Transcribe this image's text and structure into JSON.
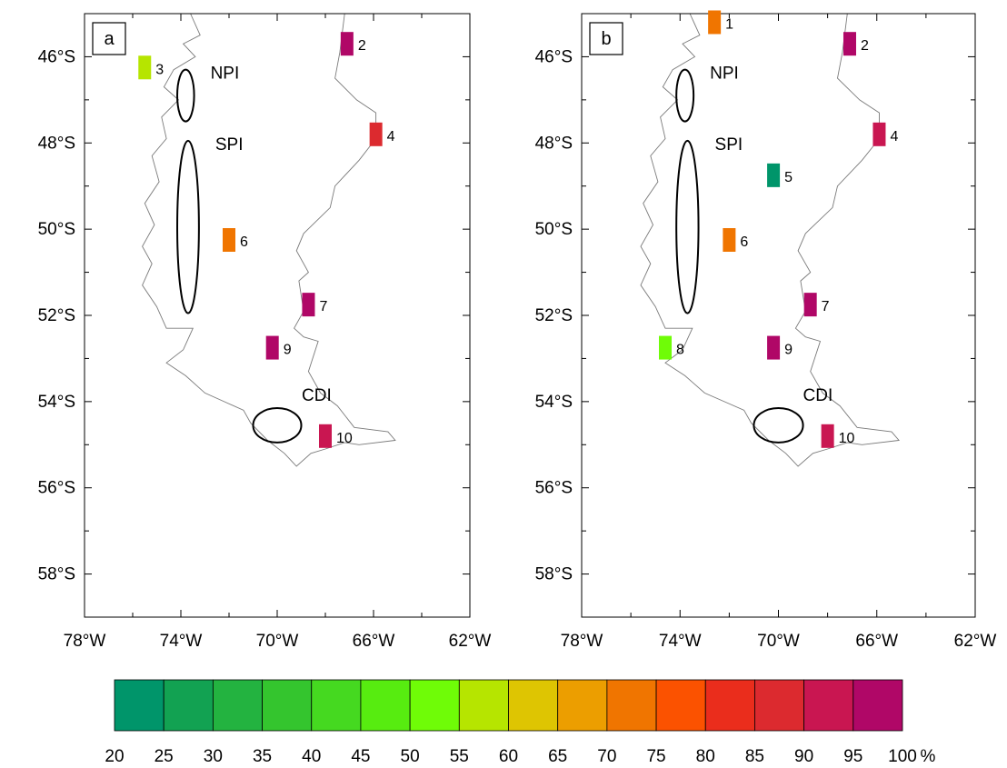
{
  "panels": [
    {
      "label": "a",
      "features": [
        {
          "name": "NPI",
          "lon": -73.8,
          "lat": -46.9,
          "rx_deg": 0.35,
          "ry_deg": 0.6
        },
        {
          "name": "SPI",
          "lon": -73.7,
          "lat": -49.95,
          "rx_deg": 0.45,
          "ry_deg": 2.0
        },
        {
          "name": "CDI",
          "lon": -70.0,
          "lat": -54.55,
          "rx_deg": 1.0,
          "ry_deg": 0.4
        }
      ],
      "stations": [
        {
          "id": "3",
          "lon": -75.5,
          "lat": -46.25,
          "percent": 58
        },
        {
          "id": "2",
          "lon": -67.1,
          "lat": -45.7,
          "percent": 100
        },
        {
          "id": "4",
          "lon": -65.9,
          "lat": -47.8,
          "percent": 87
        },
        {
          "id": "6",
          "lon": -72.0,
          "lat": -50.25,
          "percent": 70
        },
        {
          "id": "7",
          "lon": -68.7,
          "lat": -51.75,
          "percent": 100
        },
        {
          "id": "9",
          "lon": -70.2,
          "lat": -52.75,
          "percent": 100
        },
        {
          "id": "10",
          "lon": -68.0,
          "lat": -54.8,
          "percent": 93
        }
      ]
    },
    {
      "label": "b",
      "features": [
        {
          "name": "NPI",
          "lon": -73.8,
          "lat": -46.9,
          "rx_deg": 0.35,
          "ry_deg": 0.6
        },
        {
          "name": "SPI",
          "lon": -73.7,
          "lat": -49.95,
          "rx_deg": 0.45,
          "ry_deg": 2.0
        },
        {
          "name": "CDI",
          "lon": -70.0,
          "lat": -54.55,
          "rx_deg": 1.0,
          "ry_deg": 0.4
        }
      ],
      "stations": [
        {
          "id": "1",
          "lon": -72.6,
          "lat": -45.2,
          "percent": 70
        },
        {
          "id": "2",
          "lon": -67.1,
          "lat": -45.7,
          "percent": 100
        },
        {
          "id": "4",
          "lon": -65.9,
          "lat": -47.8,
          "percent": 92
        },
        {
          "id": "5",
          "lon": -70.2,
          "lat": -48.75,
          "percent": 22
        },
        {
          "id": "6",
          "lon": -72.0,
          "lat": -50.25,
          "percent": 70
        },
        {
          "id": "7",
          "lon": -68.7,
          "lat": -51.75,
          "percent": 100
        },
        {
          "id": "8",
          "lon": -74.6,
          "lat": -52.75,
          "percent": 50
        },
        {
          "id": "9",
          "lon": -70.2,
          "lat": -52.75,
          "percent": 100
        },
        {
          "id": "10",
          "lon": -68.0,
          "lat": -54.8,
          "percent": 93
        }
      ]
    }
  ],
  "map_extent": {
    "lon_min": -78,
    "lon_max": -62,
    "lat_min": -59,
    "lat_max": -45
  },
  "y_ticks": [
    {
      "lat": -46,
      "label": "46°S"
    },
    {
      "lat": -48,
      "label": "48°S"
    },
    {
      "lat": -50,
      "label": "50°S"
    },
    {
      "lat": -52,
      "label": "52°S"
    },
    {
      "lat": -54,
      "label": "54°S"
    },
    {
      "lat": -56,
      "label": "56°S"
    },
    {
      "lat": -58,
      "label": "58°S"
    }
  ],
  "x_ticks": [
    {
      "lon": -78,
      "label": "78°W"
    },
    {
      "lon": -74,
      "label": "74°W"
    },
    {
      "lon": -70,
      "label": "70°W"
    },
    {
      "lon": -66,
      "label": "66°W"
    },
    {
      "lon": -62,
      "label": "62°W"
    }
  ],
  "colorbar": {
    "ticks": [
      "20",
      "25",
      "30",
      "35",
      "40",
      "45",
      "50",
      "55",
      "60",
      "65",
      "70",
      "75",
      "80",
      "85",
      "90",
      "95",
      "100"
    ],
    "unit": "%",
    "colors": [
      "#00956a",
      "#12a252",
      "#23b340",
      "#34c52e",
      "#45d920",
      "#57ec10",
      "#6ffc07",
      "#b6e500",
      "#dec502",
      "#ec9e00",
      "#f07500",
      "#fb5200",
      "#ea2d1c",
      "#dc2a2f",
      "#c91651",
      "#b00767"
    ]
  },
  "coast_color": "#7a7a7a"
}
